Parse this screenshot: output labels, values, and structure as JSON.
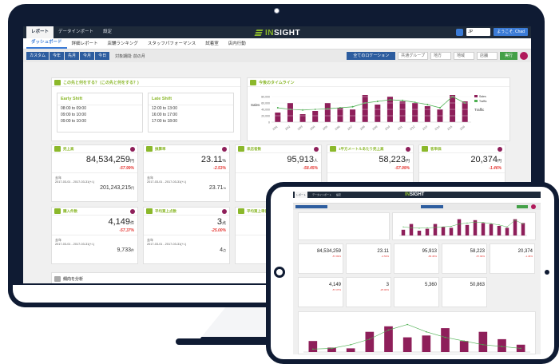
{
  "topbar": {
    "tabs": [
      {
        "label": "レポート",
        "active": true
      },
      {
        "label": "データインポート",
        "active": false
      },
      {
        "label": "設定",
        "active": false
      }
    ],
    "logo": {
      "prefix": "IN",
      "suffix": "SIGHT"
    },
    "language": "JP",
    "user_label": "ようこそ, Chad"
  },
  "subnav": {
    "tabs": [
      {
        "label": "ダッシュボード",
        "active": true
      },
      {
        "label": "詳細レポート",
        "active": false
      },
      {
        "label": "店舗ランキング",
        "active": false
      },
      {
        "label": "スタッフパフォーマンス",
        "active": false
      },
      {
        "label": "試着室",
        "active": false
      },
      {
        "label": "店内行動",
        "active": false
      }
    ]
  },
  "filterbar": {
    "period_buttons": [
      "カスタム",
      "今年",
      "先月",
      "今月",
      "今日"
    ],
    "period_label": "対象期間: 前の月",
    "store_button": "全てのロケーション",
    "selects": [
      "共通グループ",
      "地方",
      "地域",
      "店舗"
    ],
    "run_button": "実行"
  },
  "alerts_panel": {
    "title": "この先と何をする？ (この先と何をする？)",
    "shifts": [
      {
        "name": "Early Shift",
        "slots": [
          "08:00 to 09:00",
          "09:00 to 10:00",
          "09:00 to 10:00"
        ]
      },
      {
        "name": "Late Shift",
        "slots": [
          "12:00 to 13:00",
          "16:00 to 17:00",
          "17:00 to 18:00"
        ]
      }
    ]
  },
  "timeline_panel": {
    "title": "今後のタイムライン",
    "legend": [
      "Sales",
      "Traffic"
    ]
  },
  "kpis": [
    {
      "title": "売上高",
      "value": "84,534,259",
      "unit": "円",
      "change": "-57.99%",
      "prev_label": "去年",
      "range": "2017-03-01 - 2017-03-31(+/-)",
      "prev_value": "201,243,215",
      "prev_unit": "円"
    },
    {
      "title": "換算率",
      "value": "23.11",
      "unit": "%",
      "change": "-2.53%",
      "prev_label": "去年",
      "range": "2017-03-01 - 2017-03-31(+/-)",
      "prev_value": "23.71",
      "prev_unit": "%"
    },
    {
      "title": "来店者数",
      "value": "95,913",
      "unit": "人",
      "change": "-58.45%",
      "prev_label": "",
      "range": "",
      "prev_value": "",
      "prev_unit": ""
    },
    {
      "title": "1平方メートルあたり売上高",
      "value": "58,223",
      "unit": "円",
      "change": "-57.99%",
      "prev_label": "",
      "range": "",
      "prev_value": "",
      "prev_unit": ""
    },
    {
      "title": "客単価",
      "value": "20,374",
      "unit": "円",
      "change": "-1.46%",
      "prev_label": "",
      "range": "",
      "prev_value": "",
      "prev_unit": ""
    },
    {
      "title": "購入件数",
      "value": "4,149",
      "unit": "件",
      "change": "-57.37%",
      "prev_label": "去年",
      "range": "2017-03-01 - 2017-03-31(+/-)",
      "prev_value": "9,733",
      "prev_unit": "件"
    },
    {
      "title": "平均買上点数",
      "value": "3",
      "unit": "点",
      "change": "-25.00%",
      "prev_label": "去年",
      "range": "2017-03-01 - 2017-03-31(+/-)",
      "prev_value": "4",
      "prev_unit": "点"
    },
    {
      "title": "平均買上単価",
      "value": "",
      "unit": "",
      "change": "",
      "prev_label": "",
      "range": "",
      "prev_value": "",
      "prev_unit": ""
    }
  ],
  "trend_panel": {
    "title": "傾向を分析"
  },
  "tablet": {
    "logo": {
      "prefix": "IN",
      "suffix": "SIGHT"
    },
    "kpis": [
      {
        "value": "84,534,259",
        "change": "-57.99%"
      },
      {
        "value": "23.11",
        "change": "-2.53%"
      },
      {
        "value": "95,913",
        "change": "-58.45%"
      },
      {
        "value": "58,223",
        "change": "-57.99%"
      },
      {
        "value": "20,374",
        "change": "-1.46%"
      },
      {
        "value": "4,149",
        "change": "-57.37%"
      },
      {
        "value": "3",
        "change": "-25.00%"
      },
      {
        "value": "5,360",
        "change": ""
      },
      {
        "value": "50,863",
        "change": ""
      }
    ]
  },
  "chart_data": [
    {
      "type": "bar",
      "title": "今後のタイムライン",
      "ylabel": "Sales",
      "y2label": "Traffic",
      "categories": [
        "2/01",
        "2/02",
        "2/03",
        "2/04",
        "2/05",
        "2/06",
        "2/07",
        "2/08",
        "2/09",
        "2/10",
        "2/11",
        "2/12",
        "2/13",
        "2/14",
        "2/15",
        "2/16"
      ],
      "series": [
        {
          "name": "Sales",
          "type": "bar",
          "values": [
            30000,
            60000,
            25000,
            35000,
            60000,
            45000,
            40000,
            85000,
            55000,
            80000,
            65000,
            60000,
            50000,
            40000,
            85000,
            65000
          ]
        },
        {
          "name": "Traffic",
          "type": "line",
          "values": [
            45000,
            40000,
            38000,
            40000,
            42000,
            45000,
            48000,
            60000,
            65000,
            70000,
            68000,
            62000,
            55000,
            45000,
            80000,
            60000
          ]
        }
      ],
      "ylim": [
        0,
        100000
      ]
    },
    {
      "type": "bar",
      "title": "",
      "categories": [
        "1",
        "2",
        "3",
        "4",
        "5",
        "6",
        "7",
        "8",
        "9",
        "10",
        "11",
        "12"
      ],
      "series": [
        {
          "name": "",
          "type": "bar",
          "values": [
            30,
            12,
            10,
            55,
            70,
            40,
            45,
            65,
            30,
            55,
            35,
            20
          ]
        },
        {
          "name": "",
          "type": "line",
          "values": [
            8,
            10,
            20,
            35,
            60,
            75,
            55,
            40,
            30,
            20,
            15,
            10
          ]
        }
      ],
      "ylim": [
        0,
        100
      ]
    }
  ],
  "colors": {
    "navy": "#0f1b33",
    "green": "#8bb82b",
    "bar": "#8e1f5a",
    "line": "#4caf50",
    "negative": "#e53935",
    "blue": "#2d5d9f"
  }
}
